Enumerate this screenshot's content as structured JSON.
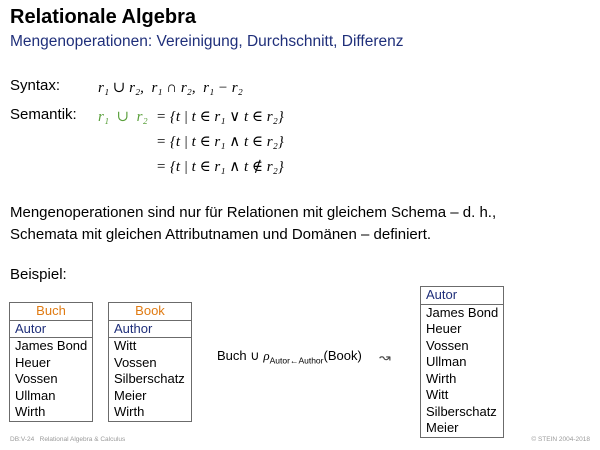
{
  "colors": {
    "title_blue": "#1f2f7a",
    "table_name_orange": "#e07b13",
    "green": "#5aa03c",
    "footer_gray": "#9a9a9a"
  },
  "header": {
    "title": "Relationale Algebra",
    "subtitle": "Mengenoperationen: Vereinigung, Durchschnitt, Differenz"
  },
  "syntax": {
    "label": "Syntax:",
    "expr_union": "r₁ ∪ r₂,",
    "expr_intersection": "r₁ ∩ r₂,",
    "expr_difference": "r₁ − r₂"
  },
  "semantik": {
    "label": "Semantik:",
    "lhs": "r₁  ∪  r₂",
    "line1": "= {t | t ∈ r₁ ∨ t ∈ r₂}",
    "line2": "= {t | t ∈ r₁ ∧ t ∈ r₂}",
    "line3": "= {t | t ∈ r₁ ∧ t ∉ r₂}"
  },
  "paragraph": {
    "line1": "Mengenoperationen sind nur für Relationen mit gleichem Schema – d. h.,",
    "line2": "Schemata mit gleichen Attributnamen und Domänen – definiert."
  },
  "example": {
    "label": "Beispiel:",
    "buch": {
      "name": "Buch",
      "attribute": "Autor",
      "rows": [
        "James Bond",
        "Heuer",
        "Vossen",
        "Ullman",
        "Wirth"
      ]
    },
    "book": {
      "name": "Book",
      "attribute": "Author",
      "rows": [
        "Witt",
        "Vossen",
        "Silberschatz",
        "Meier",
        "Wirth"
      ]
    },
    "expression": {
      "left": "Buch ∪ ",
      "rho": "ρ",
      "subscript": "Autor←Author",
      "right": "(Book)"
    },
    "leadsto": "↝",
    "result": {
      "attribute": "Autor",
      "rows": [
        "James Bond",
        "Heuer",
        "Vossen",
        "Ullman",
        "Wirth",
        "Witt",
        "Silberschatz",
        "Meier"
      ]
    }
  },
  "footer": {
    "left": "DB:V-24   Relational Algebra & Calculus",
    "right": "© STEIN 2004-2018"
  }
}
